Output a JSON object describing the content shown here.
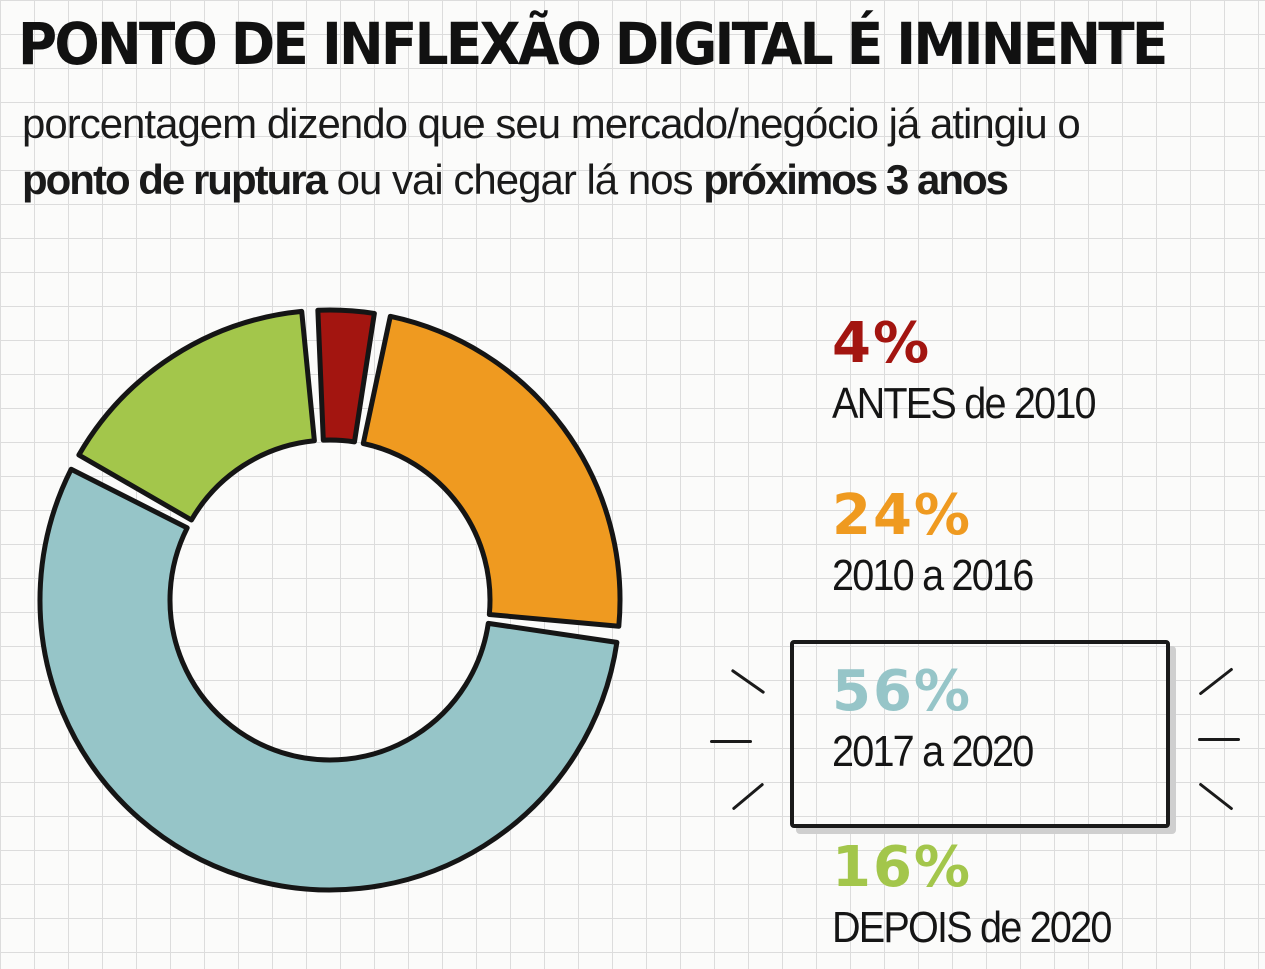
{
  "title": "PONTO DE INFLEXÃO DIGITAL É IMINENTE",
  "subtitle": {
    "line1": "porcentagem dizendo que seu mercado/negócio já atingiu o",
    "bold1": "ponto de ruptura",
    "mid": " ou vai chegar lá nos ",
    "bold2": "próximos  3 anos"
  },
  "chart_data": {
    "type": "pie",
    "categories": [
      "ANTES de 2010",
      "2010 a 2016",
      "2017 a 2020",
      "DEPOIS de 2020"
    ],
    "values": [
      4,
      24,
      56,
      16
    ],
    "value_labels": [
      "4%",
      "24%",
      "56%",
      "16%"
    ],
    "colors": [
      "#a31510",
      "#ef9a20",
      "#96c5c8",
      "#a3c64b"
    ],
    "highlighted": "2017 a 2020"
  }
}
